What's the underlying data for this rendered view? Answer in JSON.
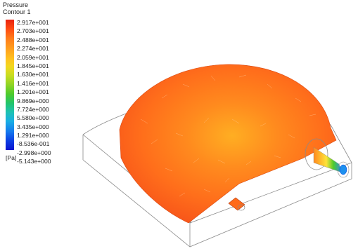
{
  "legend": {
    "title": "Pressure",
    "subtitle": "Contour 1",
    "unit": "[Pa]",
    "ticks": [
      "2.917e+001",
      "2.703e+001",
      "2.488e+001",
      "2.274e+001",
      "2.059e+001",
      "1.845e+001",
      "1.630e+001",
      "1.416e+001",
      "1.201e+001",
      "9.869e+000",
      "7.724e+000",
      "5.580e+000",
      "3.435e+000",
      "1.291e+000",
      "-8.536e-001",
      "-2.998e+000",
      "-5.143e+000"
    ]
  },
  "colors": {
    "max": "#e8220f",
    "mid": "#ffc21f",
    "min": "#0a14d0",
    "surface": "#ff6a1a",
    "core": "#ffa020"
  }
}
